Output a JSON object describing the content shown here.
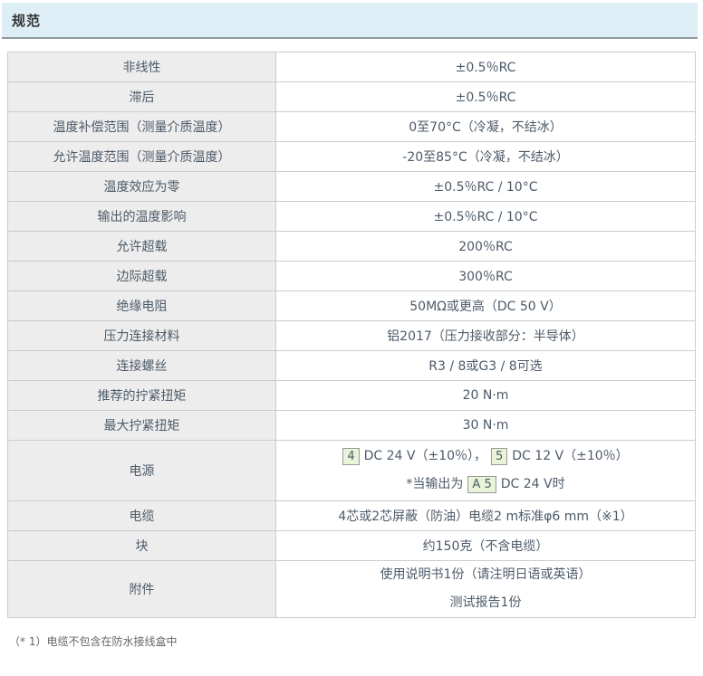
{
  "panel": {
    "title": "规范"
  },
  "table": {
    "rows": [
      {
        "label": "非线性",
        "value": "±0.5％RC"
      },
      {
        "label": "滞后",
        "value": "±0.5％RC"
      },
      {
        "label": "温度补偿范围（测量介质温度）",
        "value": "0至70°C（冷凝，不结冰）"
      },
      {
        "label": "允许温度范围（测量介质温度）",
        "value": "-20至85°C（冷凝，不结冰）"
      },
      {
        "label": "温度效应为零",
        "value": "±0.5％RC / 10°C"
      },
      {
        "label": "输出的温度影响",
        "value": "±0.5％RC / 10°C"
      },
      {
        "label": "允许超载",
        "value": "200％RC"
      },
      {
        "label": "边际超载",
        "value": "300％RC"
      },
      {
        "label": "绝缘电阻",
        "value": "50MΩ或更高（DC 50 V）"
      },
      {
        "label": "压力连接材料",
        "value": "铝2017（压力接收部分：半导体）"
      },
      {
        "label": "连接螺丝",
        "value": "R3 / 8或G3 / 8可选"
      },
      {
        "label": "推荐的拧紧扭矩",
        "value": "20 N·m"
      },
      {
        "label": "最大拧紧扭矩",
        "value": "30 N·m"
      },
      {
        "label": "电源",
        "power": {
          "badge1": "4",
          "text1": "DC 24 V（±10％），",
          "badge2": "5",
          "text2": "DC 12 V（±10％）",
          "note_prefix": "*当输出为",
          "badge3": "A 5",
          "note_suffix": "DC 24 V时"
        }
      },
      {
        "label": "电缆",
        "value": "4芯或2芯屏蔽（防油）电缆2 m标准φ6 mm（※1）"
      },
      {
        "label": "块",
        "value": "约150克（不含电缆）"
      },
      {
        "label": "附件",
        "lines": [
          "使用说明书1份（请注明日语或英语）",
          "测试报告1份"
        ]
      }
    ]
  },
  "footnote": "（* 1）电缆不包含在防水接线盒中",
  "colors": {
    "header_bg": "#ddeef6",
    "header_border": "#8e9aa0",
    "label_bg": "#ededed",
    "table_border": "#cccccc",
    "badge_bg": "#e8f3d7",
    "badge_border": "#9a9a9a",
    "text": "#4d5a68"
  }
}
